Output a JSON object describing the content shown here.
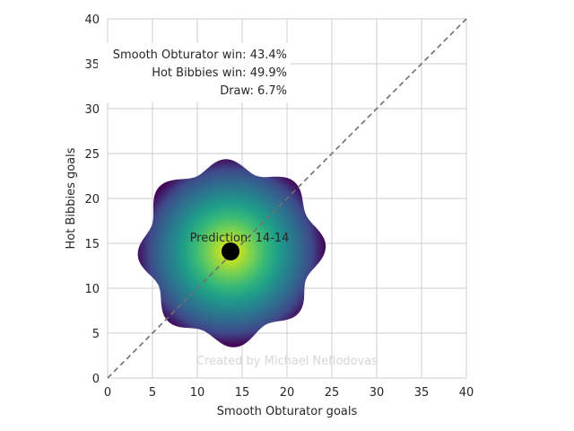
{
  "chart_data": {
    "type": "heatmap",
    "title": "",
    "xlabel": "Smooth Obturator goals",
    "ylabel": "Hot Bibbies goals",
    "xlim": [
      0,
      40
    ],
    "ylim": [
      0,
      40
    ],
    "xticks": [
      0,
      5,
      10,
      15,
      20,
      25,
      30,
      35,
      40
    ],
    "yticks": [
      0,
      5,
      10,
      15,
      20,
      25,
      30,
      35,
      40
    ],
    "grid": true,
    "colormap": "viridis",
    "reference_line": {
      "x": [
        0,
        40
      ],
      "y": [
        0,
        40
      ],
      "style": "dashed",
      "color": "#707070"
    },
    "density": {
      "center_x": 13.7,
      "center_y": 14.1,
      "radius": 9.8,
      "wobble": 0.07
    },
    "prediction_point": {
      "x": 13.7,
      "y": 14.1,
      "color": "#000000"
    },
    "prediction_label": "Prediction: 14-14",
    "stats": [
      "Smooth Obturator win: 43.4%",
      "Hot Bibbies win: 49.9%",
      "Draw: 6.7%"
    ],
    "credit": "Created by Michael Nefiodovas"
  }
}
